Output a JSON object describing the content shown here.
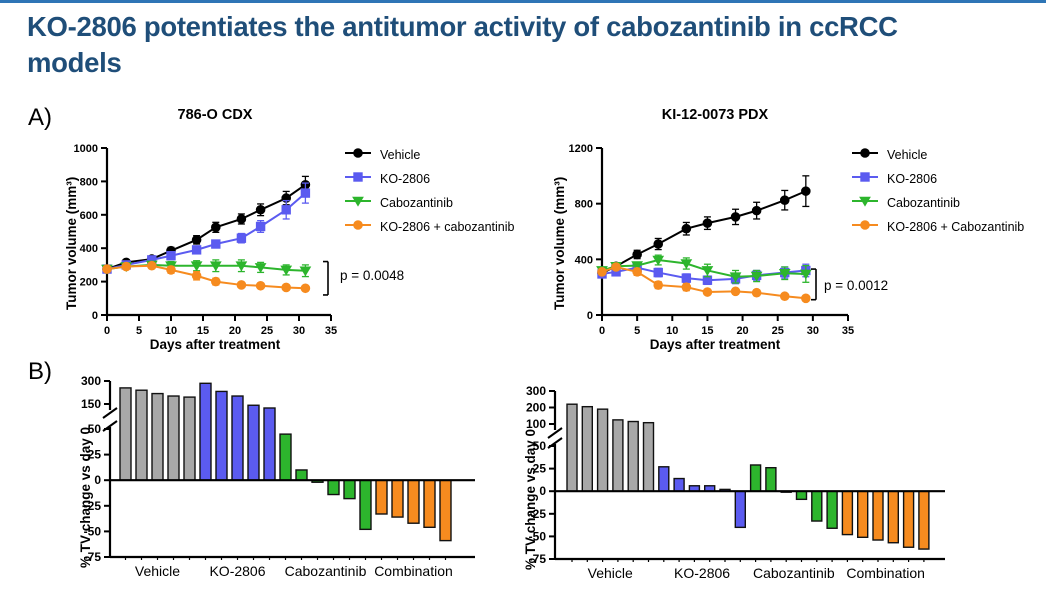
{
  "page": {
    "title": "KO-2806 potentiates the antitumor activity of cabozantinib in ccRCC models",
    "panel_a": "A)",
    "panel_b": "B)"
  },
  "colors": {
    "title_text": "#1f4e79",
    "top_rule": "#2e75b6",
    "vehicle_line": "#000000",
    "ko2806": "#5b5bf0",
    "cabozantinib": "#2db52d",
    "combination": "#f68b1f",
    "vehicle_bar": "#a8a8a8"
  },
  "chart_data": [
    {
      "id": "line-786o",
      "type": "line",
      "title": "786-O CDX",
      "xlabel": "Days after treatment",
      "ylabel": "Tumor volume (mm³)",
      "xlim": [
        0,
        35
      ],
      "xticks": [
        0,
        5,
        10,
        15,
        20,
        25,
        30,
        35
      ],
      "ylim": [
        0,
        1000
      ],
      "yticks": [
        0,
        200,
        400,
        600,
        800,
        1000
      ],
      "x": [
        0,
        3,
        7,
        10,
        14,
        17,
        21,
        24,
        28,
        31
      ],
      "series": [
        {
          "name": "Vehicle",
          "color": "#000000",
          "marker": "circle",
          "values": [
            275,
            315,
            335,
            385,
            450,
            525,
            575,
            630,
            700,
            780
          ],
          "err": [
            10,
            15,
            15,
            20,
            25,
            30,
            30,
            35,
            40,
            50
          ]
        },
        {
          "name": "KO-2806",
          "color": "#5b5bf0",
          "marker": "square",
          "values": [
            275,
            300,
            330,
            355,
            390,
            425,
            460,
            530,
            630,
            730
          ],
          "err": [
            10,
            12,
            15,
            18,
            20,
            22,
            28,
            35,
            55,
            60
          ]
        },
        {
          "name": "Cabozantinib",
          "color": "#2db52d",
          "marker": "triangle-down",
          "values": [
            275,
            290,
            300,
            295,
            295,
            295,
            295,
            285,
            270,
            265
          ],
          "err": [
            10,
            12,
            15,
            25,
            30,
            35,
            35,
            30,
            30,
            35
          ]
        },
        {
          "name": "KO-2806 + cabozantinib",
          "color": "#f68b1f",
          "marker": "circle",
          "values": [
            275,
            290,
            295,
            270,
            235,
            200,
            180,
            175,
            165,
            160
          ],
          "err": [
            10,
            12,
            15,
            20,
            25,
            20,
            15,
            15,
            12,
            12
          ]
        }
      ],
      "p_value": "p = 0.0048",
      "bracket": {
        "from": 320,
        "to": 120
      }
    },
    {
      "id": "line-ki12",
      "type": "line",
      "title": "KI-12-0073 PDX",
      "xlabel": "Days after treatment",
      "ylabel": "Tumor volume (mm³)",
      "xlim": [
        0,
        35
      ],
      "xticks": [
        0,
        5,
        10,
        15,
        20,
        25,
        30,
        35
      ],
      "ylim": [
        0,
        1200
      ],
      "yticks": [
        0,
        400,
        800,
        1200
      ],
      "x": [
        0,
        2,
        5,
        8,
        12,
        15,
        19,
        22,
        26,
        29
      ],
      "series": [
        {
          "name": "Vehicle",
          "color": "#000000",
          "marker": "circle",
          "values": [
            300,
            350,
            435,
            510,
            620,
            660,
            705,
            750,
            825,
            890
          ],
          "err": [
            25,
            25,
            30,
            40,
            45,
            45,
            55,
            60,
            70,
            110
          ]
        },
        {
          "name": "KO-2806",
          "color": "#5b5bf0",
          "marker": "square",
          "values": [
            295,
            310,
            340,
            305,
            265,
            250,
            260,
            285,
            305,
            320
          ],
          "err": [
            20,
            20,
            25,
            30,
            30,
            30,
            35,
            35,
            40,
            45
          ]
        },
        {
          "name": "Cabozantinib",
          "color": "#2db52d",
          "marker": "triangle-down",
          "values": [
            320,
            350,
            355,
            395,
            370,
            320,
            275,
            280,
            300,
            295
          ],
          "err": [
            20,
            20,
            25,
            35,
            40,
            45,
            45,
            40,
            45,
            60
          ]
        },
        {
          "name": "KO-2806 + Cabozantinib",
          "color": "#f68b1f",
          "marker": "circle",
          "values": [
            310,
            345,
            310,
            215,
            200,
            165,
            170,
            160,
            135,
            120
          ],
          "err": [
            20,
            20,
            25,
            25,
            25,
            20,
            20,
            20,
            18,
            15
          ]
        }
      ],
      "p_value": "p = 0.0012",
      "bracket": {
        "from": 330,
        "to": 110
      }
    },
    {
      "id": "wf-786o",
      "type": "bar",
      "ylabel": "% TV change vs day 0",
      "axis_break": {
        "lower_min": -75,
        "lower_max": 50,
        "upper_min": 150,
        "upper_max": 300
      },
      "lower_ticks": [
        -75,
        -50,
        -25,
        0,
        25,
        50
      ],
      "upper_ticks": [
        150,
        300
      ],
      "groups": [
        {
          "name": "Vehicle",
          "color": "#a8a8a8",
          "values": [
            255,
            240,
            218,
            202,
            195
          ]
        },
        {
          "name": "KO-2806",
          "color": "#5b5bf0",
          "values": [
            285,
            232,
            202,
            145,
            134
          ]
        },
        {
          "name": "Cabozantinib",
          "color": "#2db52d",
          "values": [
            45,
            10,
            -2,
            -14,
            -18,
            -48
          ]
        },
        {
          "name": "Combination",
          "color": "#f68b1f",
          "values": [
            -33,
            -36,
            -42,
            -46,
            -59
          ]
        }
      ]
    },
    {
      "id": "wf-ki12",
      "type": "bar",
      "ylabel": "% TV change vs day 0",
      "axis_break": {
        "lower_min": -75,
        "lower_max": 50,
        "upper_min": 100,
        "upper_max": 300
      },
      "lower_ticks": [
        -75,
        -50,
        -25,
        0,
        25,
        50
      ],
      "upper_ticks": [
        100,
        200,
        300
      ],
      "groups": [
        {
          "name": "Vehicle",
          "color": "#a8a8a8",
          "values": [
            220,
            205,
            190,
            125,
            115,
            108
          ]
        },
        {
          "name": "KO-2806",
          "color": "#5b5bf0",
          "values": [
            27,
            14,
            6,
            6,
            2,
            -40
          ]
        },
        {
          "name": "Cabozantinib",
          "color": "#2db52d",
          "values": [
            29,
            26,
            -1,
            -9,
            -33,
            -41
          ]
        },
        {
          "name": "Combination",
          "color": "#f68b1f",
          "values": [
            -48,
            -51,
            -54,
            -57,
            -62,
            -64
          ]
        }
      ]
    }
  ]
}
